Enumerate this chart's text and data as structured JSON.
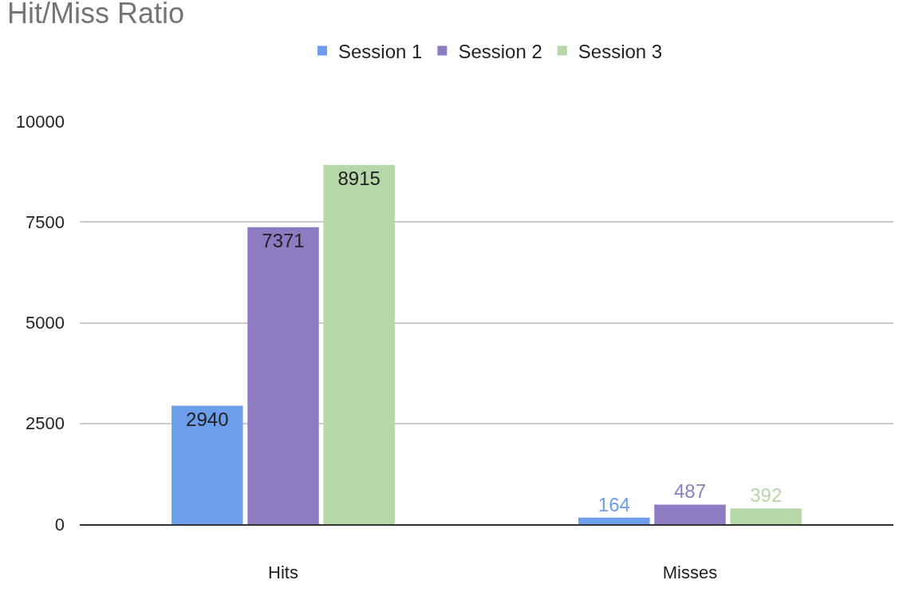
{
  "chart_data": {
    "type": "bar",
    "title": "Hit/Miss Ratio",
    "categories": [
      "Hits",
      "Misses"
    ],
    "series": [
      {
        "name": "Session 1",
        "color": "#6d9eeb",
        "values": [
          2940,
          164
        ]
      },
      {
        "name": "Session 2",
        "color": "#8e7cc3",
        "values": [
          7371,
          487
        ]
      },
      {
        "name": "Session 3",
        "color": "#b6d7a8",
        "values": [
          8915,
          392
        ]
      }
    ],
    "ylim": [
      0,
      10000
    ],
    "yticks": [
      0,
      2500,
      5000,
      7500,
      10000
    ],
    "grid": "y",
    "legend": "top",
    "data_labels": true
  }
}
